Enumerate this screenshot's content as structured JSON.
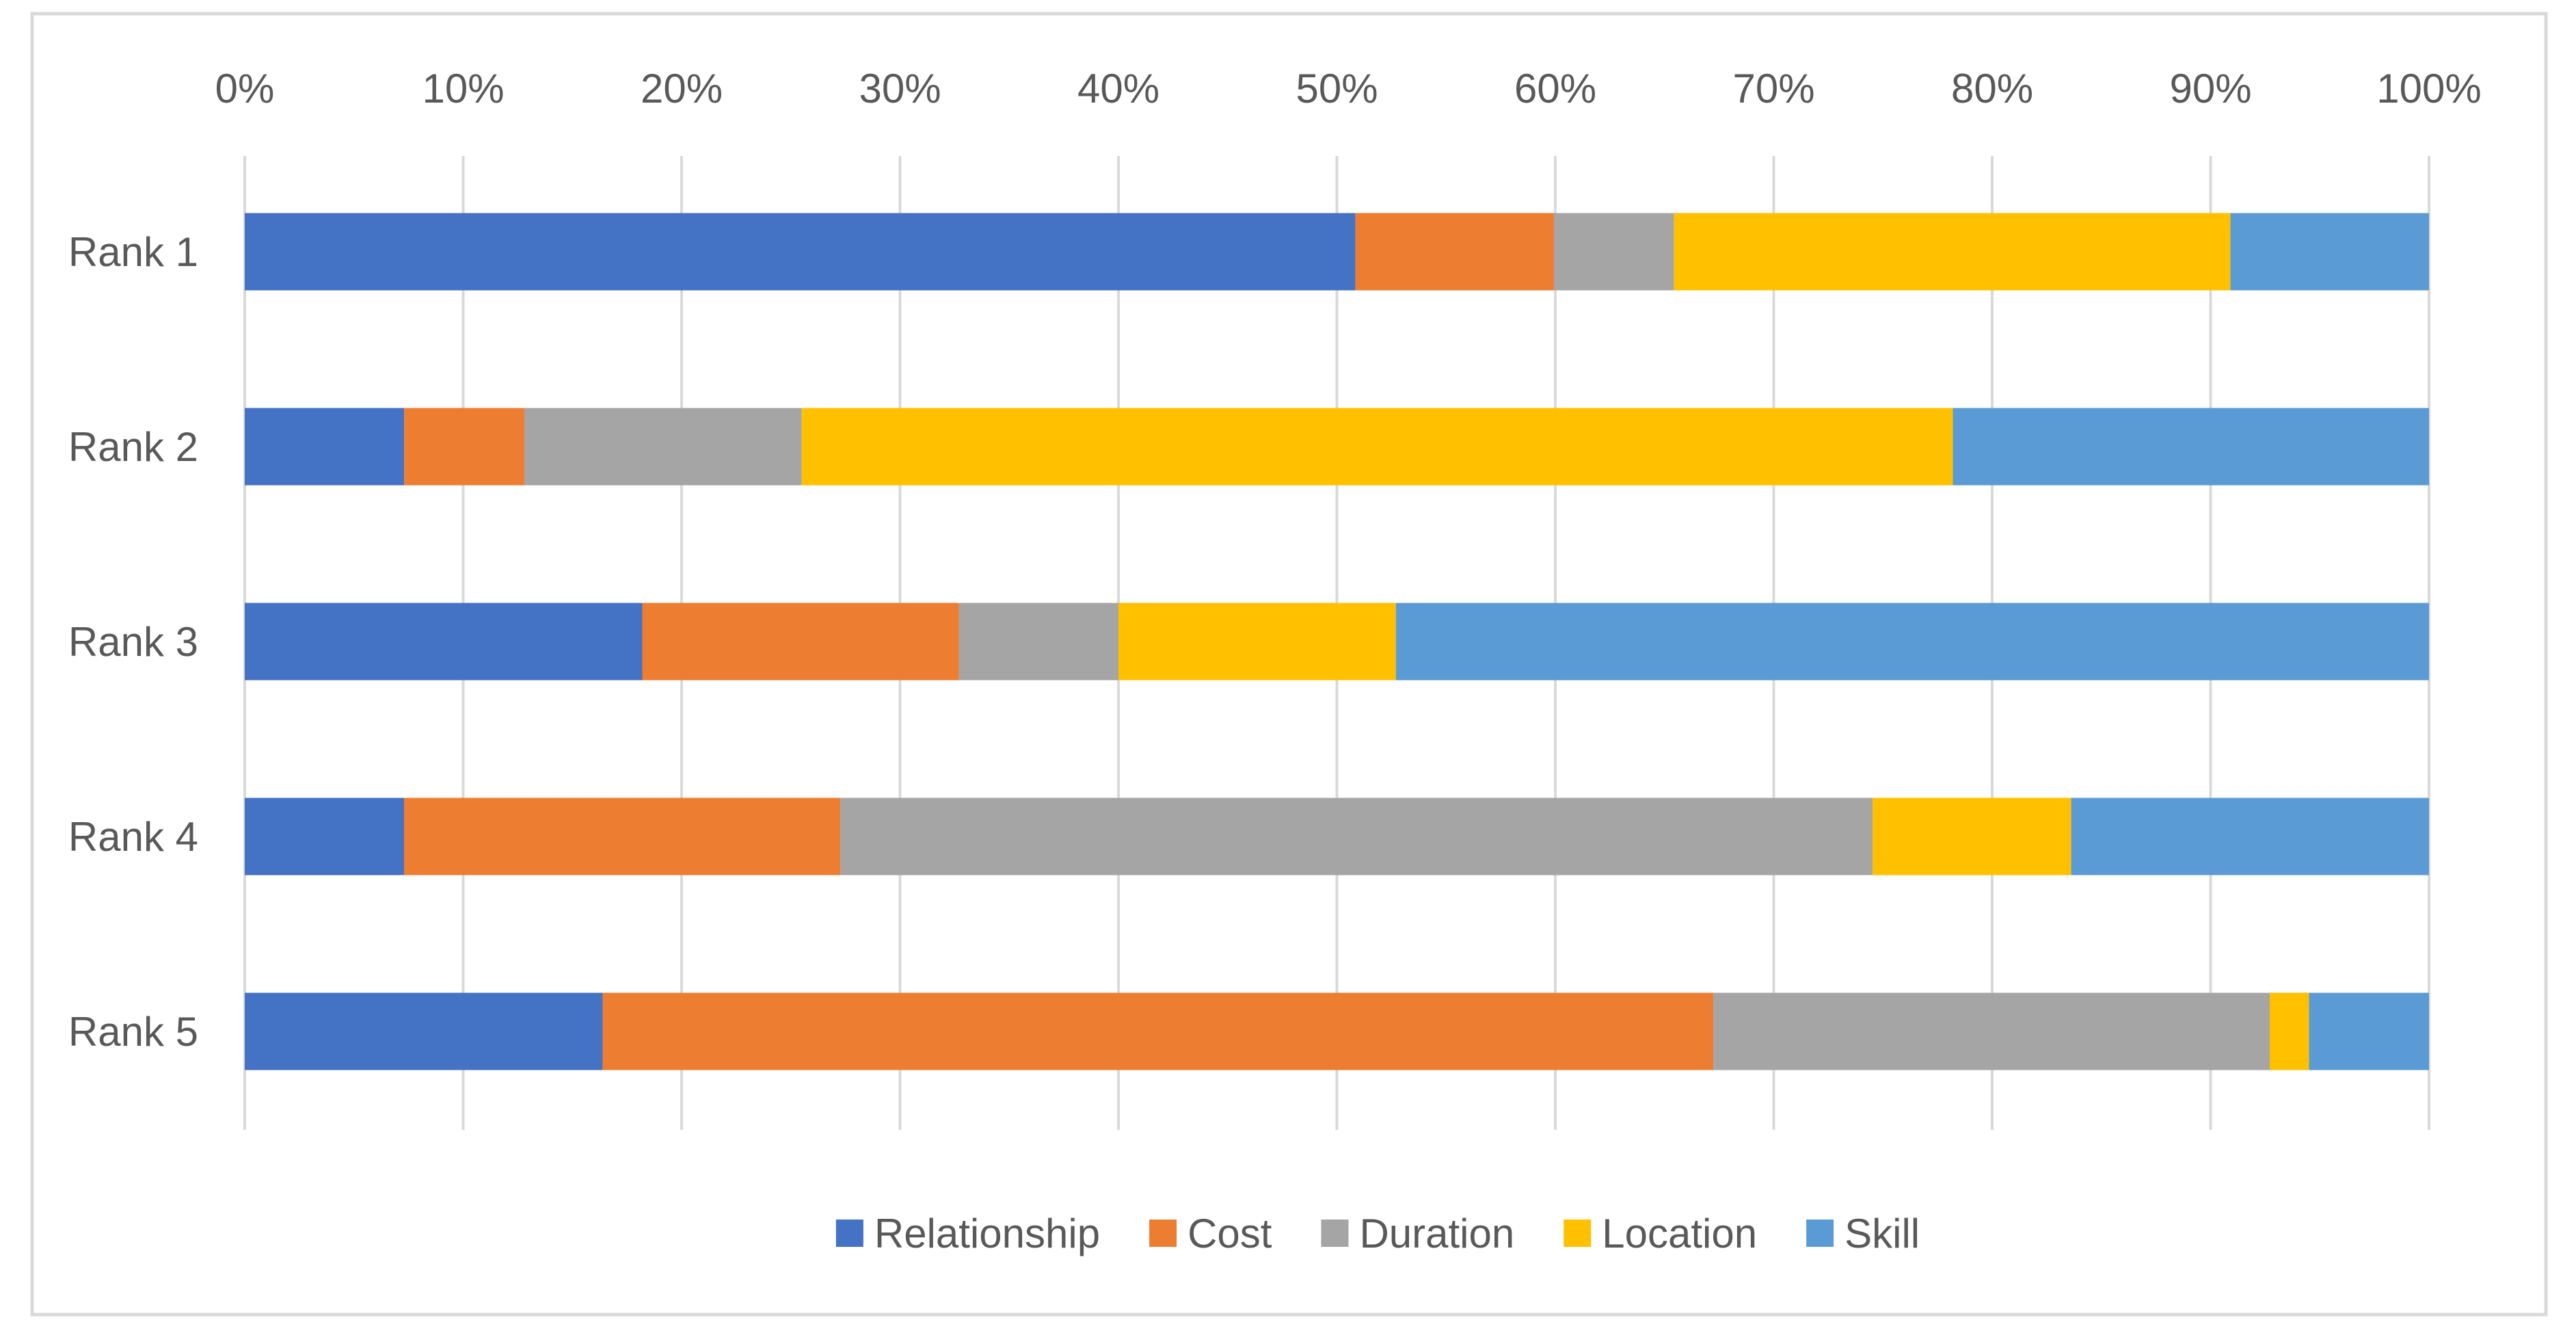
{
  "chart_data": {
    "type": "bar",
    "orientation": "horizontal",
    "stacked": "percent",
    "title": "",
    "xlabel": "",
    "ylabel": "",
    "xlim": [
      0,
      100
    ],
    "x_ticks": [
      "0%",
      "10%",
      "20%",
      "30%",
      "40%",
      "50%",
      "60%",
      "70%",
      "80%",
      "90%",
      "100%"
    ],
    "x_axis_position": "top",
    "grid": true,
    "legend_position": "bottom",
    "categories": [
      "Rank 1",
      "Rank 2",
      "Rank 3",
      "Rank 4",
      "Rank 5"
    ],
    "series": [
      {
        "name": "Relationship",
        "color": "#4472C4",
        "values": [
          50.9,
          7.3,
          18.2,
          7.3,
          16.4
        ]
      },
      {
        "name": "Cost",
        "color": "#ED7D31",
        "values": [
          9.1,
          5.5,
          14.5,
          20.0,
          50.9
        ]
      },
      {
        "name": "Duration",
        "color": "#A5A5A5",
        "values": [
          5.5,
          12.7,
          7.3,
          47.3,
          25.5
        ]
      },
      {
        "name": "Location",
        "color": "#FFC000",
        "values": [
          25.5,
          52.7,
          12.7,
          9.1,
          1.8
        ]
      },
      {
        "name": "Skill",
        "color": "#5B9BD5",
        "values": [
          9.1,
          21.8,
          47.3,
          16.4,
          5.5
        ]
      }
    ]
  }
}
